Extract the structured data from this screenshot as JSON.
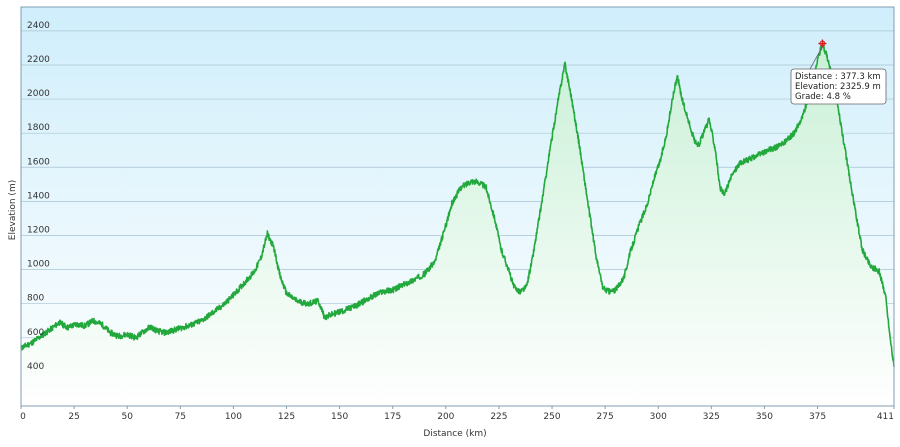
{
  "chart_data": {
    "type": "area",
    "xlabel": "Distance  (km)",
    "ylabel": "Elevation (m)",
    "xlim": [
      0,
      411
    ],
    "ylim": [
      200,
      2540
    ],
    "xticks": [
      0,
      25,
      50,
      75,
      100,
      125,
      150,
      175,
      200,
      225,
      250,
      275,
      300,
      325,
      350,
      375,
      411
    ],
    "yticks": [
      400,
      600,
      800,
      1000,
      1200,
      1400,
      1600,
      1800,
      2000,
      2200,
      2400
    ],
    "grid": true,
    "colors": {
      "line": "#22a83c",
      "fill_top": "#c9f0d6",
      "fill_bottom": "#ffffff",
      "bg_top": "#cfeefb",
      "bg_bottom": "#ffffff",
      "grid": "#a8c4d4"
    },
    "profile": [
      [
        0,
        540
      ],
      [
        5,
        570
      ],
      [
        10,
        615
      ],
      [
        15,
        660
      ],
      [
        18,
        690
      ],
      [
        22,
        660
      ],
      [
        26,
        680
      ],
      [
        30,
        670
      ],
      [
        34,
        700
      ],
      [
        38,
        680
      ],
      [
        42,
        630
      ],
      [
        46,
        610
      ],
      [
        50,
        620
      ],
      [
        54,
        600
      ],
      [
        58,
        640
      ],
      [
        61,
        665
      ],
      [
        64,
        640
      ],
      [
        68,
        630
      ],
      [
        72,
        645
      ],
      [
        76,
        660
      ],
      [
        80,
        675
      ],
      [
        85,
        700
      ],
      [
        90,
        745
      ],
      [
        95,
        790
      ],
      [
        100,
        850
      ],
      [
        105,
        920
      ],
      [
        110,
        990
      ],
      [
        113,
        1070
      ],
      [
        116,
        1210
      ],
      [
        119,
        1130
      ],
      [
        122,
        960
      ],
      [
        125,
        860
      ],
      [
        130,
        815
      ],
      [
        135,
        800
      ],
      [
        140,
        815
      ],
      [
        143,
        720
      ],
      [
        147,
        740
      ],
      [
        152,
        760
      ],
      [
        158,
        790
      ],
      [
        165,
        840
      ],
      [
        170,
        870
      ],
      [
        175,
        880
      ],
      [
        180,
        910
      ],
      [
        185,
        940
      ],
      [
        190,
        975
      ],
      [
        195,
        1050
      ],
      [
        200,
        1260
      ],
      [
        203,
        1390
      ],
      [
        207,
        1480
      ],
      [
        212,
        1520
      ],
      [
        216,
        1510
      ],
      [
        219,
        1480
      ],
      [
        223,
        1300
      ],
      [
        226,
        1120
      ],
      [
        229,
        1020
      ],
      [
        232,
        900
      ],
      [
        235,
        870
      ],
      [
        238,
        900
      ],
      [
        241,
        1080
      ],
      [
        245,
        1380
      ],
      [
        249,
        1700
      ],
      [
        253,
        2000
      ],
      [
        256,
        2210
      ],
      [
        259,
        2020
      ],
      [
        263,
        1720
      ],
      [
        267,
        1380
      ],
      [
        271,
        1060
      ],
      [
        274,
        890
      ],
      [
        277,
        870
      ],
      [
        280,
        880
      ],
      [
        284,
        960
      ],
      [
        287,
        1110
      ],
      [
        291,
        1260
      ],
      [
        295,
        1390
      ],
      [
        298,
        1530
      ],
      [
        301,
        1640
      ],
      [
        304,
        1800
      ],
      [
        307,
        2020
      ],
      [
        309,
        2140
      ],
      [
        311,
        2010
      ],
      [
        314,
        1880
      ],
      [
        317,
        1760
      ],
      [
        319,
        1730
      ],
      [
        322,
        1820
      ],
      [
        324,
        1880
      ],
      [
        327,
        1700
      ],
      [
        329,
        1480
      ],
      [
        331,
        1440
      ],
      [
        335,
        1560
      ],
      [
        338,
        1620
      ],
      [
        345,
        1660
      ],
      [
        352,
        1700
      ],
      [
        358,
        1730
      ],
      [
        364,
        1800
      ],
      [
        368,
        1900
      ],
      [
        372,
        2060
      ],
      [
        375,
        2230
      ],
      [
        377.3,
        2325.9
      ],
      [
        380,
        2230
      ],
      [
        384,
        2000
      ],
      [
        388,
        1700
      ],
      [
        392,
        1400
      ],
      [
        396,
        1120
      ],
      [
        400,
        1020
      ],
      [
        404,
        990
      ],
      [
        407,
        850
      ],
      [
        409,
        620
      ],
      [
        411,
        430
      ]
    ],
    "marker": {
      "x": 377.3,
      "y": 2325.9
    },
    "tooltip": {
      "distance": "Distance : 377.3 km",
      "elevation": "Elevation: 2325.9 m",
      "grade": "Grade: 4.8 %"
    }
  }
}
